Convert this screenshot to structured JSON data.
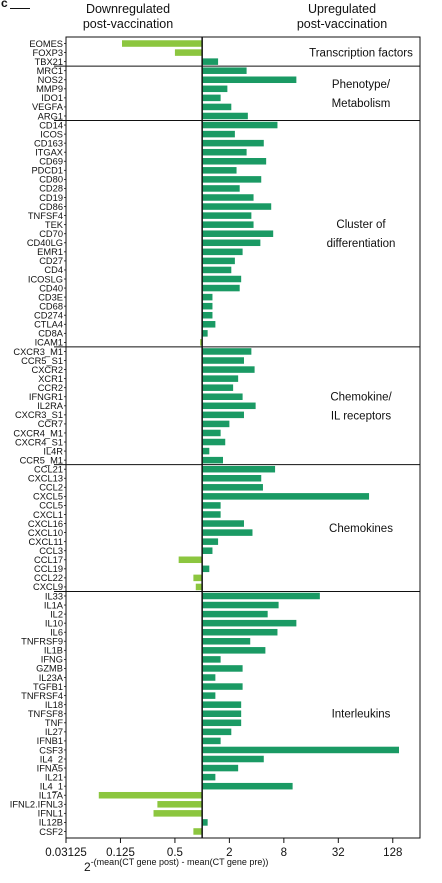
{
  "chart_data": {
    "type": "bar",
    "orientation": "horizontal",
    "panel_label": "c",
    "header_left": [
      "Downregulated",
      "post-vaccination"
    ],
    "header_right": [
      "Upregulated",
      "post-vaccination"
    ],
    "xlabel_base": "2",
    "xlabel_exponent": "-(mean(CT gene post) - mean(CT gene pre))",
    "xscale": "log2",
    "xlim": [
      0.03125,
      256
    ],
    "baseline": 1,
    "xticks": [
      0.03125,
      0.125,
      0.5,
      2,
      8,
      32,
      128
    ],
    "xtick_labels": [
      "0.03125",
      "0.125",
      "0.5",
      "2",
      "8",
      "32",
      "128"
    ],
    "colors": {
      "up": "#1a9a64",
      "down": "#8cc63f",
      "axis": "#111111"
    },
    "groups": [
      {
        "name": [
          "Transcription factors"
        ],
        "genes": [
          {
            "gene": "EOMES",
            "value": 0.13
          },
          {
            "gene": "FOXP3",
            "value": 0.5
          },
          {
            "gene": "TBX21",
            "value": 1.5
          }
        ]
      },
      {
        "name": [
          "Phenotype/",
          "Metabolism"
        ],
        "genes": [
          {
            "gene": "MRC1",
            "value": 3.1
          },
          {
            "gene": "NOS2",
            "value": 11.0
          },
          {
            "gene": "MMP9",
            "value": 1.9
          },
          {
            "gene": "IDO1",
            "value": 1.6
          },
          {
            "gene": "VEGFA",
            "value": 2.1
          },
          {
            "gene": "ARG1",
            "value": 3.2
          }
        ]
      },
      {
        "name": [
          "Cluster of",
          "differentiation"
        ],
        "genes": [
          {
            "gene": "CD14",
            "value": 6.8
          },
          {
            "gene": "ICOS",
            "value": 2.3
          },
          {
            "gene": "CD163",
            "value": 4.8
          },
          {
            "gene": "ITGAX",
            "value": 3.1
          },
          {
            "gene": "CD69",
            "value": 5.1
          },
          {
            "gene": "PDCD1",
            "value": 2.4
          },
          {
            "gene": "CD80",
            "value": 4.5
          },
          {
            "gene": "CD28",
            "value": 2.6
          },
          {
            "gene": "CD19",
            "value": 3.7
          },
          {
            "gene": "CD86",
            "value": 5.8
          },
          {
            "gene": "TNFSF4",
            "value": 3.5
          },
          {
            "gene": "TEK",
            "value": 3.7
          },
          {
            "gene": "CD70",
            "value": 6.1
          },
          {
            "gene": "CD40LG",
            "value": 4.4
          },
          {
            "gene": "EMR1",
            "value": 2.8
          },
          {
            "gene": "CD27",
            "value": 2.3
          },
          {
            "gene": "CD4",
            "value": 2.1
          },
          {
            "gene": "ICOSLG",
            "value": 2.7
          },
          {
            "gene": "CD40",
            "value": 2.6
          },
          {
            "gene": "CD3E",
            "value": 1.3
          },
          {
            "gene": "CD68",
            "value": 1.3
          },
          {
            "gene": "CD274",
            "value": 1.3
          },
          {
            "gene": "CTLA4",
            "value": 1.4
          },
          {
            "gene": "CD8A",
            "value": 1.15
          },
          {
            "gene": "ICAM1",
            "value": 0.95
          }
        ]
      },
      {
        "name": [
          "Chemokine/",
          "IL receptors"
        ],
        "genes": [
          {
            "gene": "CXCR3_M1",
            "value": 3.5
          },
          {
            "gene": "CCR5_S1",
            "value": 2.9
          },
          {
            "gene": "CXCR2",
            "value": 3.8
          },
          {
            "gene": "XCR1",
            "value": 2.5
          },
          {
            "gene": "CCR2",
            "value": 2.2
          },
          {
            "gene": "IFNGR1",
            "value": 2.8
          },
          {
            "gene": "IL2RA",
            "value": 3.9
          },
          {
            "gene": "CXCR3_S1",
            "value": 2.9
          },
          {
            "gene": "CCR7",
            "value": 2.0
          },
          {
            "gene": "CXCR4_M1",
            "value": 1.6
          },
          {
            "gene": "CXCR4_S1",
            "value": 1.8
          },
          {
            "gene": "IL4R",
            "value": 1.2
          },
          {
            "gene": "CCR5_M1",
            "value": 1.7
          }
        ]
      },
      {
        "name": [
          "Chemokines"
        ],
        "genes": [
          {
            "gene": "CCL21",
            "value": 6.4
          },
          {
            "gene": "CXCL13",
            "value": 4.5
          },
          {
            "gene": "CCL2",
            "value": 4.7
          },
          {
            "gene": "CXCL5",
            "value": 70.0
          },
          {
            "gene": "CCL5",
            "value": 1.6
          },
          {
            "gene": "CXCL1",
            "value": 1.6
          },
          {
            "gene": "CXCL16",
            "value": 2.9
          },
          {
            "gene": "CXCL10",
            "value": 3.6
          },
          {
            "gene": "CXCL11",
            "value": 1.5
          },
          {
            "gene": "CCL3",
            "value": 1.3
          },
          {
            "gene": "CCL17",
            "value": 0.55
          },
          {
            "gene": "CCL19",
            "value": 1.2
          },
          {
            "gene": "CCL22",
            "value": 0.8
          },
          {
            "gene": "CXCL9",
            "value": 0.85
          }
        ]
      },
      {
        "name": [
          "Interleukins"
        ],
        "genes": [
          {
            "gene": "IL33",
            "value": 20.0
          },
          {
            "gene": "IL1A",
            "value": 7.0
          },
          {
            "gene": "IL2",
            "value": 5.3
          },
          {
            "gene": "IL10",
            "value": 11.0
          },
          {
            "gene": "IL6",
            "value": 6.8
          },
          {
            "gene": "TNFRSF9",
            "value": 3.4
          },
          {
            "gene": "IL1B",
            "value": 5.0
          },
          {
            "gene": "IFNG",
            "value": 1.6
          },
          {
            "gene": "GZMB",
            "value": 2.8
          },
          {
            "gene": "IL23A",
            "value": 1.4
          },
          {
            "gene": "TGFB1",
            "value": 2.8
          },
          {
            "gene": "TNFRSF4",
            "value": 1.4
          },
          {
            "gene": "IL18",
            "value": 2.7
          },
          {
            "gene": "TNFSF8",
            "value": 2.7
          },
          {
            "gene": "TNF",
            "value": 2.7
          },
          {
            "gene": "IL27",
            "value": 2.1
          },
          {
            "gene": "IFNB1",
            "value": 1.6
          },
          {
            "gene": "CSF3",
            "value": 150.0
          },
          {
            "gene": "IL4_2",
            "value": 4.8
          },
          {
            "gene": "IFNA5",
            "value": 2.5
          },
          {
            "gene": "IL21",
            "value": 1.4
          },
          {
            "gene": "IL4_1",
            "value": 10.0
          },
          {
            "gene": "IL17A",
            "value": 0.072
          },
          {
            "gene": "IFNL2.IFNL3",
            "value": 0.32
          },
          {
            "gene": "IFNL1",
            "value": 0.29
          },
          {
            "gene": "IL12B",
            "value": 1.15
          },
          {
            "gene": "CSF2",
            "value": 0.8
          }
        ]
      }
    ]
  }
}
